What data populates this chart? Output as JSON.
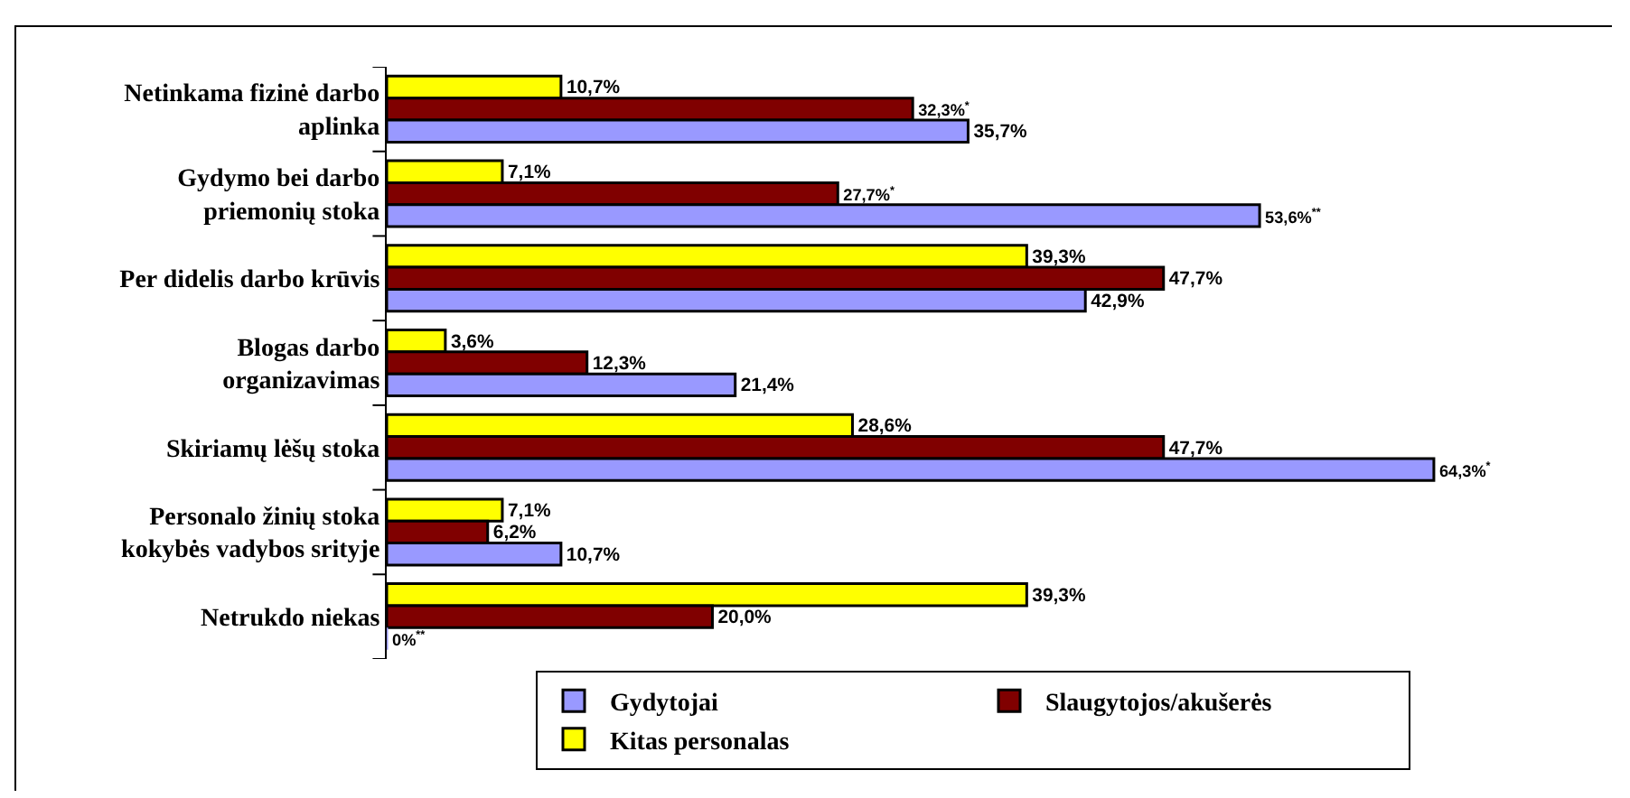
{
  "chart_data": {
    "type": "bar",
    "orientation": "horizontal",
    "categories": [
      "Netinkama fizinė darbo aplinka",
      "Gydymo bei darbo priemonių stoka",
      "Per didelis darbo krūvis",
      "Blogas darbo organizavimas",
      "Skiriamų lėšų stoka",
      "Personalo žinių stoka kokybės vadybos srityje",
      "Netrukdo niekas"
    ],
    "series": [
      {
        "name": "Gydytojai",
        "color": "#9999ff",
        "values": [
          35.7,
          53.6,
          42.9,
          21.4,
          64.3,
          10.7,
          0
        ],
        "value_labels": [
          "35,7%",
          "53,6%$^{**}$",
          "42,9%",
          "21,4%",
          "64,3%$^{*}$",
          "10,7%",
          "0%$^{**}$"
        ]
      },
      {
        "name": "Slaugytojos/akušerės",
        "color": "#800000",
        "values": [
          32.3,
          27.7,
          47.7,
          12.3,
          47.7,
          6.2,
          20.0
        ],
        "value_labels": [
          "32,3%$^{*}$",
          "27,7%$^{*}$",
          "47,7%",
          "12,3%",
          "47,7%",
          "6,2%",
          "20,0%"
        ]
      },
      {
        "name": "Kitas personalas",
        "color": "#ffff00",
        "values": [
          10.7,
          7.1,
          39.3,
          3.6,
          28.6,
          7.1,
          39.3
        ],
        "value_labels": [
          "10,7%",
          "7,1%",
          "39,3%",
          "3,6%",
          "28,6%",
          "7,1%",
          "39,3%"
        ]
      }
    ],
    "legend": "bottom",
    "grid": false
  }
}
